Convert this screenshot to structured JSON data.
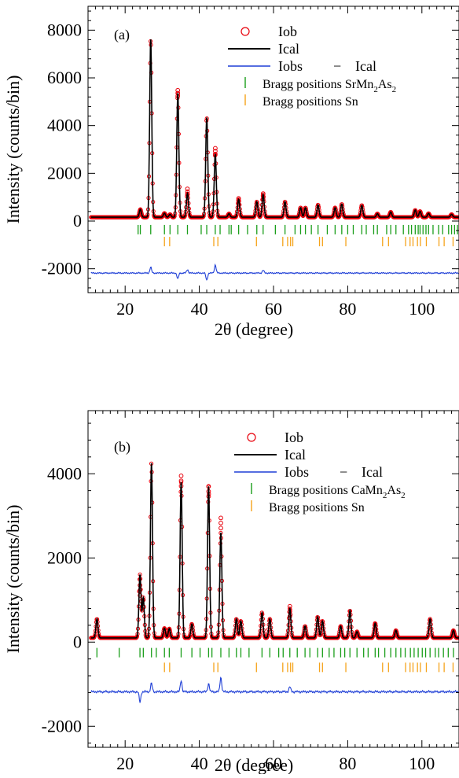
{
  "chart_data": [
    {
      "type": "line",
      "panel_label": "(a)",
      "xlabel": "2θ (degree)",
      "ylabel": "Intensity (counts/bin)",
      "xlim": [
        10,
        110
      ],
      "ylim": [
        -3000,
        9000
      ],
      "xticks": [
        20,
        40,
        60,
        80,
        100
      ],
      "yticks": [
        -2000,
        0,
        2000,
        4000,
        6000,
        8000
      ],
      "xtick_labels": [
        "20",
        "40",
        "60",
        "80",
        "100"
      ],
      "ytick_labels": [
        "-2000",
        "0",
        "2000",
        "4000",
        "6000",
        "8000"
      ],
      "legend": {
        "placement": "top-right",
        "entries": [
          {
            "label": "Iob",
            "marker": "circle",
            "color": "#e8000b"
          },
          {
            "label": "Ical",
            "marker": "line",
            "color": "#000000"
          },
          {
            "label": "Iobs − Ical",
            "label_parts": [
              "Iobs",
              "−",
              "Ical"
            ],
            "marker": "line",
            "color": "#1f3fd6"
          },
          {
            "label": "Bragg positions SrMn2As2",
            "label_main": "Bragg positions SrMn",
            "sub1": "2",
            "mid": "As",
            "sub2": "2",
            "marker": "tick",
            "color": "#1a9e1a"
          },
          {
            "label": "Bragg positions Sn",
            "marker": "tick",
            "color": "#f5a31a"
          }
        ]
      },
      "background": 160,
      "peaks": [
        {
          "x": 24.1,
          "y": 330
        },
        {
          "x": 26.9,
          "y": 7450
        },
        {
          "x": 30.6,
          "y": 170
        },
        {
          "x": 32.1,
          "y": 120
        },
        {
          "x": 34.2,
          "y": 5200
        },
        {
          "x": 36.8,
          "y": 1000
        },
        {
          "x": 42.0,
          "y": 4180
        },
        {
          "x": 44.3,
          "y": 2650
        },
        {
          "x": 48.0,
          "y": 150
        },
        {
          "x": 50.6,
          "y": 750
        },
        {
          "x": 55.5,
          "y": 650
        },
        {
          "x": 57.2,
          "y": 950
        },
        {
          "x": 63.1,
          "y": 650
        },
        {
          "x": 67.3,
          "y": 400
        },
        {
          "x": 68.6,
          "y": 400
        },
        {
          "x": 72.0,
          "y": 520
        },
        {
          "x": 76.6,
          "y": 400
        },
        {
          "x": 78.4,
          "y": 550
        },
        {
          "x": 83.8,
          "y": 500
        },
        {
          "x": 88.0,
          "y": 150
        },
        {
          "x": 91.6,
          "y": 220
        },
        {
          "x": 98.2,
          "y": 300
        },
        {
          "x": 99.5,
          "y": 250
        },
        {
          "x": 101.8,
          "y": 160
        },
        {
          "x": 108.0,
          "y": 120
        }
      ],
      "obs_offsets": [
        {
          "x": 34.2,
          "y": 5480
        },
        {
          "x": 36.8,
          "y": 1350
        },
        {
          "x": 44.3,
          "y": 3050
        },
        {
          "x": 50.6,
          "y": 950
        },
        {
          "x": 57.2,
          "y": 1150
        }
      ],
      "diff_baseline": -2180,
      "diff_spikes": [
        {
          "x": 26.9,
          "y": 250
        },
        {
          "x": 34.2,
          "y": -250
        },
        {
          "x": 36.8,
          "y": 150
        },
        {
          "x": 42.0,
          "y": -300
        },
        {
          "x": 44.3,
          "y": 350
        },
        {
          "x": 57.2,
          "y": 120
        }
      ],
      "bragg_phase1_y": -360,
      "bragg_phase1": [
        23.5,
        24.1,
        26.9,
        30.6,
        32.1,
        34.2,
        36.8,
        40.5,
        42.0,
        44.3,
        45.6,
        48.0,
        48.6,
        50.6,
        53.0,
        55.5,
        57.2,
        60.5,
        63.1,
        65.8,
        67.3,
        68.6,
        70.2,
        72.0,
        74.5,
        76.6,
        78.4,
        80.0,
        81.5,
        83.8,
        85.0,
        87.0,
        88.0,
        90.5,
        91.6,
        93.0,
        95.0,
        96.4,
        97.2,
        98.2,
        99.0,
        99.5,
        100.3,
        101.1,
        101.8,
        103.0,
        104.5,
        105.6,
        107.2,
        108.0,
        108.8,
        109.6
      ],
      "bragg_phase2_y": -860,
      "bragg_phase2": [
        30.6,
        32.0,
        43.9,
        45.0,
        55.4,
        62.5,
        63.8,
        64.6,
        65.2,
        72.4,
        73.2,
        79.5,
        89.4,
        91.0,
        95.6,
        96.8,
        97.6,
        98.8,
        99.6,
        101.2,
        104.6,
        106.0,
        108.4
      ]
    },
    {
      "type": "line",
      "panel_label": "(b)",
      "xlabel": "2θ (degree)",
      "ylabel": "Intensity (counts/bin)",
      "xlim": [
        10,
        110
      ],
      "ylim": [
        -2500,
        5500
      ],
      "xticks": [
        20,
        40,
        60,
        80,
        100
      ],
      "yticks": [
        -2000,
        0,
        2000,
        4000
      ],
      "xtick_labels": [
        "20",
        "40",
        "60",
        "80",
        "100"
      ],
      "ytick_labels": [
        "-2000",
        "0",
        "2000",
        "4000"
      ],
      "legend": {
        "placement": "top-right",
        "entries": [
          {
            "label": "Iob",
            "marker": "circle",
            "color": "#e8000b"
          },
          {
            "label": "Ical",
            "marker": "line",
            "color": "#000000"
          },
          {
            "label": "Iobs − Ical",
            "label_parts": [
              "Iobs",
              "−",
              "Ical"
            ],
            "marker": "line",
            "color": "#1f3fd6"
          },
          {
            "label": "Bragg positions CaMn2As2",
            "label_main": "Bragg positions CaMn",
            "sub1": "2",
            "mid": "As",
            "sub2": "2",
            "marker": "tick",
            "color": "#1a9e1a"
          },
          {
            "label": "Bragg positions Sn",
            "marker": "tick",
            "color": "#f5a31a"
          }
        ]
      },
      "background": 100,
      "peaks": [
        {
          "x": 12.4,
          "y": 450
        },
        {
          "x": 24.0,
          "y": 1500
        },
        {
          "x": 24.9,
          "y": 950
        },
        {
          "x": 27.1,
          "y": 4150
        },
        {
          "x": 30.6,
          "y": 230
        },
        {
          "x": 31.9,
          "y": 220
        },
        {
          "x": 35.1,
          "y": 3700
        },
        {
          "x": 38.0,
          "y": 330
        },
        {
          "x": 42.5,
          "y": 3600
        },
        {
          "x": 45.8,
          "y": 2500
        },
        {
          "x": 50.0,
          "y": 450
        },
        {
          "x": 51.2,
          "y": 400
        },
        {
          "x": 56.9,
          "y": 600
        },
        {
          "x": 59.0,
          "y": 450
        },
        {
          "x": 64.4,
          "y": 700
        },
        {
          "x": 68.5,
          "y": 280
        },
        {
          "x": 71.9,
          "y": 500
        },
        {
          "x": 73.2,
          "y": 400
        },
        {
          "x": 78.1,
          "y": 280
        },
        {
          "x": 80.6,
          "y": 650
        },
        {
          "x": 82.5,
          "y": 150
        },
        {
          "x": 87.4,
          "y": 350
        },
        {
          "x": 93.0,
          "y": 180
        },
        {
          "x": 102.2,
          "y": 450
        },
        {
          "x": 108.5,
          "y": 180
        }
      ],
      "obs_offsets": [
        {
          "x": 24.0,
          "y": 1350
        },
        {
          "x": 35.1,
          "y": 3950
        },
        {
          "x": 42.5,
          "y": 3700
        },
        {
          "x": 45.8,
          "y": 2950
        },
        {
          "x": 64.4,
          "y": 850
        },
        {
          "x": 87.4,
          "y": 420
        }
      ],
      "diff_baseline": -1180,
      "diff_spikes": [
        {
          "x": 24.0,
          "y": -250
        },
        {
          "x": 27.1,
          "y": 200
        },
        {
          "x": 35.1,
          "y": 280
        },
        {
          "x": 42.5,
          "y": 200
        },
        {
          "x": 45.8,
          "y": 350
        },
        {
          "x": 64.4,
          "y": 120
        }
      ],
      "bragg_phase1_y": -250,
      "bragg_phase1": [
        12.4,
        18.4,
        24.0,
        24.9,
        27.1,
        28.4,
        30.6,
        31.9,
        35.1,
        38.0,
        40.2,
        42.5,
        43.4,
        45.8,
        48.0,
        50.0,
        51.2,
        53.4,
        56.9,
        59.0,
        61.4,
        62.6,
        64.4,
        66.4,
        68.5,
        69.8,
        71.9,
        73.2,
        75.0,
        76.3,
        78.1,
        79.2,
        80.6,
        82.5,
        84.3,
        85.5,
        87.4,
        88.3,
        90.0,
        91.6,
        93.0,
        94.3,
        95.5,
        96.9,
        97.9,
        99.0,
        100.1,
        101.0,
        102.2,
        103.6,
        104.5,
        105.8,
        107.1,
        108.5
      ],
      "bragg_phase2_y": -600,
      "bragg_phase2": [
        30.6,
        32.0,
        43.9,
        45.0,
        55.4,
        62.5,
        63.8,
        64.6,
        65.2,
        72.4,
        73.2,
        79.5,
        89.4,
        91.0,
        95.6,
        96.8,
        97.6,
        98.8,
        99.6,
        101.2,
        104.6,
        106.0,
        108.4
      ]
    }
  ]
}
